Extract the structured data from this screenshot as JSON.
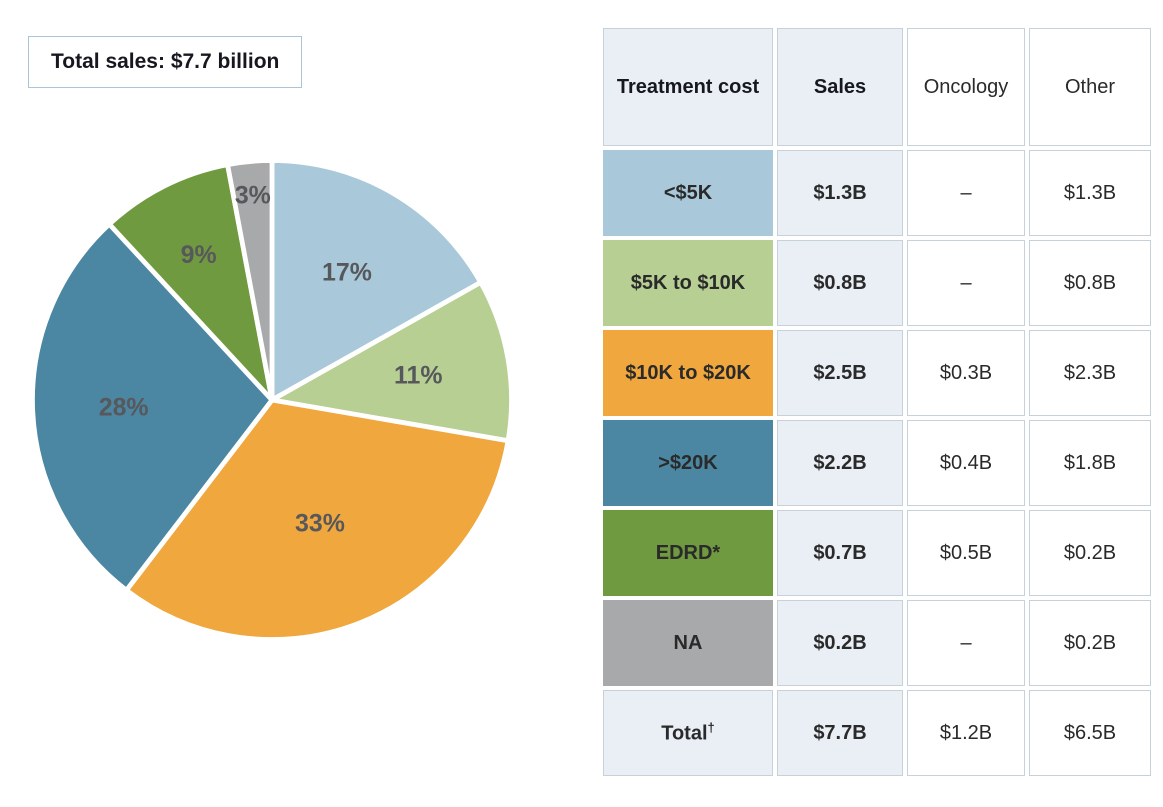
{
  "title_box": {
    "label": "Total sales: $7.7 billion"
  },
  "chart_data": {
    "type": "pie",
    "title": "Total sales: $7.7 billion",
    "total_label": "Total sales: $7.7 billion",
    "direction": "clockwise",
    "start_angle_deg": -90,
    "label_format": "percent",
    "slices": [
      {
        "label": "<$5K",
        "percent": 17,
        "color": "#a9c9da",
        "label_r": 0.62
      },
      {
        "label": "$5K to $10K",
        "percent": 11,
        "color": "#b7cf93",
        "label_r": 0.62
      },
      {
        "label": "$10K to $20K",
        "percent": 33,
        "color": "#f0a73d",
        "label_r": 0.55
      },
      {
        "label": ">$20K",
        "percent": 28,
        "color": "#4b87a2",
        "label_r": 0.62
      },
      {
        "label": "EDRD*",
        "percent": 9,
        "color": "#709a40",
        "label_r": 0.68
      },
      {
        "label": "NA",
        "percent": 3,
        "color": "#a8a9aa",
        "label_r": 0.86
      }
    ]
  },
  "table": {
    "headers": [
      {
        "label": "Treatment cost",
        "tinted": true
      },
      {
        "label": "Sales",
        "tinted": true
      },
      {
        "label": "Oncology",
        "tinted": false
      },
      {
        "label": "Other",
        "tinted": false
      }
    ],
    "rows": [
      {
        "cost": "<$5K",
        "color": "#a9c9da",
        "sales": "$1.3B",
        "oncology": "–",
        "other": "$1.3B"
      },
      {
        "cost": "$5K to $10K",
        "color": "#b7cf93",
        "sales": "$0.8B",
        "oncology": "–",
        "other": "$0.8B"
      },
      {
        "cost": "$10K to $20K",
        "color": "#f0a73d",
        "sales": "$2.5B",
        "oncology": "$0.3B",
        "other": "$2.3B"
      },
      {
        "cost": ">$20K",
        "color": "#4b87a2",
        "sales": "$2.2B",
        "oncology": "$0.4B",
        "other": "$1.8B"
      },
      {
        "cost": "EDRD*",
        "color": "#709a40",
        "sales": "$0.7B",
        "oncology": "$0.5B",
        "other": "$0.2B"
      },
      {
        "cost": "NA",
        "color": "#a8a9aa",
        "sales": "$0.2B",
        "oncology": "–",
        "other": "$0.2B"
      },
      {
        "cost": "Total",
        "sup": "†",
        "color": "#e9eff5",
        "sales": "$7.7B",
        "oncology": "$1.2B",
        "other": "$6.5B"
      }
    ]
  }
}
